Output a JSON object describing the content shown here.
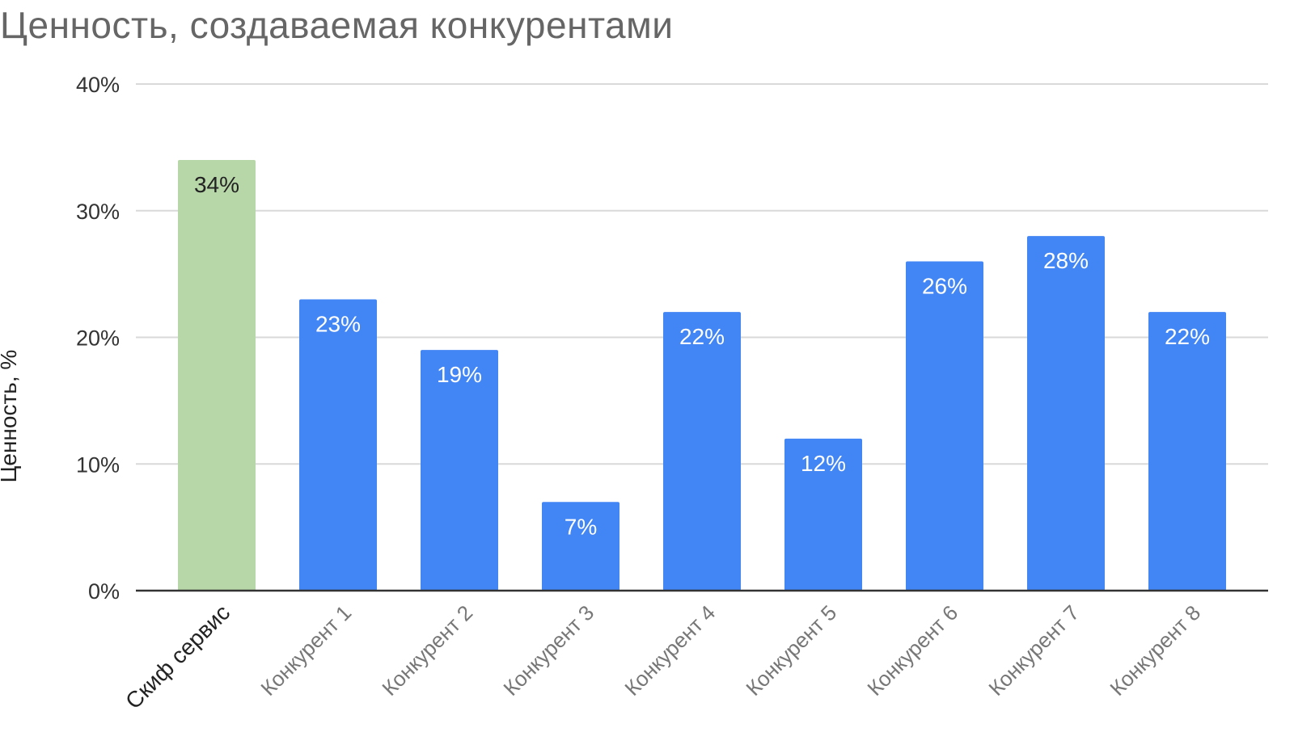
{
  "chart_data": {
    "type": "bar",
    "title": "Ценность, создаваемая конкурентами",
    "xlabel": "",
    "ylabel": "Ценность, %",
    "ylim": [
      0,
      40
    ],
    "yticks": [
      "0%",
      "10%",
      "20%",
      "30%",
      "40%"
    ],
    "grid": true,
    "legend": "none",
    "categories": [
      "Скиф сервис",
      "Конкурент 1",
      "Конкурент 2",
      "Конкурент 3",
      "Конкурент 4",
      "Конкурент 5",
      "Конкурент 6",
      "Конкурент 7",
      "Конкурент 8"
    ],
    "values": [
      34,
      23,
      19,
      7,
      22,
      12,
      26,
      28,
      22
    ],
    "data_labels": [
      "34%",
      "23%",
      "19%",
      "7%",
      "22%",
      "12%",
      "26%",
      "28%",
      "22%"
    ],
    "colors": {
      "highlight": "#b7d7a8",
      "bars": "#4285f4",
      "grid": "#d9d9d9",
      "axis": "#333333"
    }
  }
}
